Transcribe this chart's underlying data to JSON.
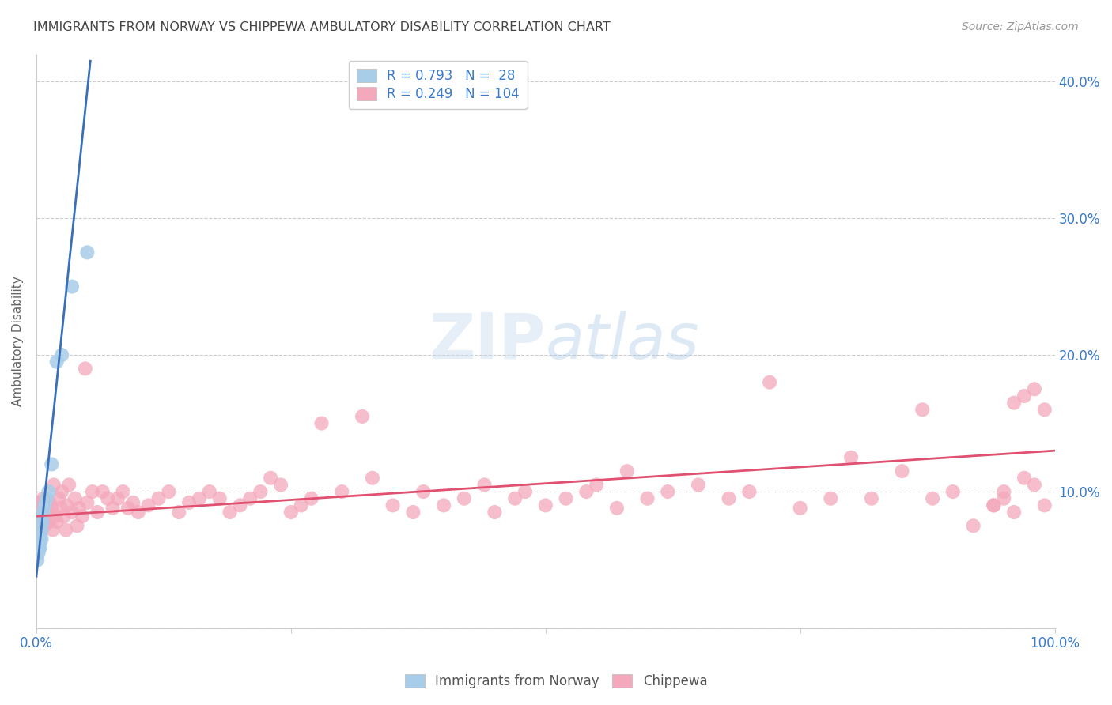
{
  "title": "IMMIGRANTS FROM NORWAY VS CHIPPEWA AMBULATORY DISABILITY CORRELATION CHART",
  "source": "Source: ZipAtlas.com",
  "ylabel": "Ambulatory Disability",
  "norway_R": 0.793,
  "norway_N": 28,
  "chippewa_R": 0.249,
  "chippewa_N": 104,
  "norway_color": "#a8cde8",
  "chippewa_color": "#f4a8bb",
  "norway_line_color": "#3a6fba",
  "chippewa_line_color": "#e05070",
  "legend_text_color": "#3a7ac8",
  "title_color": "#444444",
  "axis_label_color": "#666666",
  "tick_color": "#3a7ac8",
  "source_color": "#999999",
  "background_color": "#ffffff",
  "watermark_text": "ZIPatlas",
  "norway_x": [
    0.001,
    0.001,
    0.001,
    0.001,
    0.002,
    0.002,
    0.002,
    0.002,
    0.003,
    0.003,
    0.003,
    0.003,
    0.004,
    0.004,
    0.004,
    0.004,
    0.005,
    0.005,
    0.006,
    0.007,
    0.008,
    0.01,
    0.012,
    0.015,
    0.02,
    0.025,
    0.035,
    0.05
  ],
  "norway_y": [
    0.05,
    0.06,
    0.065,
    0.07,
    0.055,
    0.062,
    0.068,
    0.075,
    0.058,
    0.065,
    0.072,
    0.08,
    0.06,
    0.068,
    0.075,
    0.082,
    0.065,
    0.072,
    0.078,
    0.085,
    0.09,
    0.095,
    0.1,
    0.12,
    0.195,
    0.2,
    0.25,
    0.275
  ],
  "chippewa_x": [
    0.002,
    0.003,
    0.004,
    0.005,
    0.006,
    0.007,
    0.008,
    0.009,
    0.01,
    0.011,
    0.012,
    0.013,
    0.015,
    0.016,
    0.017,
    0.018,
    0.02,
    0.022,
    0.024,
    0.025,
    0.027,
    0.029,
    0.03,
    0.032,
    0.035,
    0.038,
    0.04,
    0.042,
    0.045,
    0.048,
    0.05,
    0.055,
    0.06,
    0.065,
    0.07,
    0.075,
    0.08,
    0.085,
    0.09,
    0.095,
    0.1,
    0.11,
    0.12,
    0.13,
    0.14,
    0.15,
    0.16,
    0.17,
    0.18,
    0.19,
    0.2,
    0.21,
    0.22,
    0.23,
    0.24,
    0.25,
    0.26,
    0.27,
    0.28,
    0.3,
    0.32,
    0.33,
    0.35,
    0.37,
    0.38,
    0.4,
    0.42,
    0.44,
    0.45,
    0.47,
    0.48,
    0.5,
    0.52,
    0.54,
    0.55,
    0.57,
    0.58,
    0.6,
    0.62,
    0.65,
    0.68,
    0.7,
    0.72,
    0.75,
    0.78,
    0.8,
    0.82,
    0.85,
    0.87,
    0.88,
    0.9,
    0.92,
    0.94,
    0.95,
    0.96,
    0.97,
    0.98,
    0.99,
    0.99,
    0.98,
    0.97,
    0.96,
    0.95,
    0.94
  ],
  "chippewa_y": [
    0.09,
    0.085,
    0.092,
    0.08,
    0.088,
    0.095,
    0.075,
    0.082,
    0.09,
    0.085,
    0.078,
    0.092,
    0.088,
    0.072,
    0.105,
    0.082,
    0.078,
    0.095,
    0.088,
    0.1,
    0.082,
    0.072,
    0.09,
    0.105,
    0.085,
    0.095,
    0.075,
    0.088,
    0.082,
    0.19,
    0.092,
    0.1,
    0.085,
    0.1,
    0.095,
    0.088,
    0.095,
    0.1,
    0.088,
    0.092,
    0.085,
    0.09,
    0.095,
    0.1,
    0.085,
    0.092,
    0.095,
    0.1,
    0.095,
    0.085,
    0.09,
    0.095,
    0.1,
    0.11,
    0.105,
    0.085,
    0.09,
    0.095,
    0.15,
    0.1,
    0.155,
    0.11,
    0.09,
    0.085,
    0.1,
    0.09,
    0.095,
    0.105,
    0.085,
    0.095,
    0.1,
    0.09,
    0.095,
    0.1,
    0.105,
    0.088,
    0.115,
    0.095,
    0.1,
    0.105,
    0.095,
    0.1,
    0.18,
    0.088,
    0.095,
    0.125,
    0.095,
    0.115,
    0.16,
    0.095,
    0.1,
    0.075,
    0.09,
    0.095,
    0.165,
    0.11,
    0.175,
    0.09,
    0.16,
    0.105,
    0.17,
    0.085,
    0.1,
    0.09
  ],
  "xlim": [
    0.0,
    1.0
  ],
  "ylim": [
    0.0,
    0.42
  ],
  "norway_line_x": [
    0.0,
    0.053
  ],
  "norway_line_y_start": 0.038,
  "norway_line_y_end": 0.415,
  "chippewa_line_x": [
    0.0,
    1.0
  ],
  "chippewa_line_y_start": 0.082,
  "chippewa_line_y_end": 0.13
}
